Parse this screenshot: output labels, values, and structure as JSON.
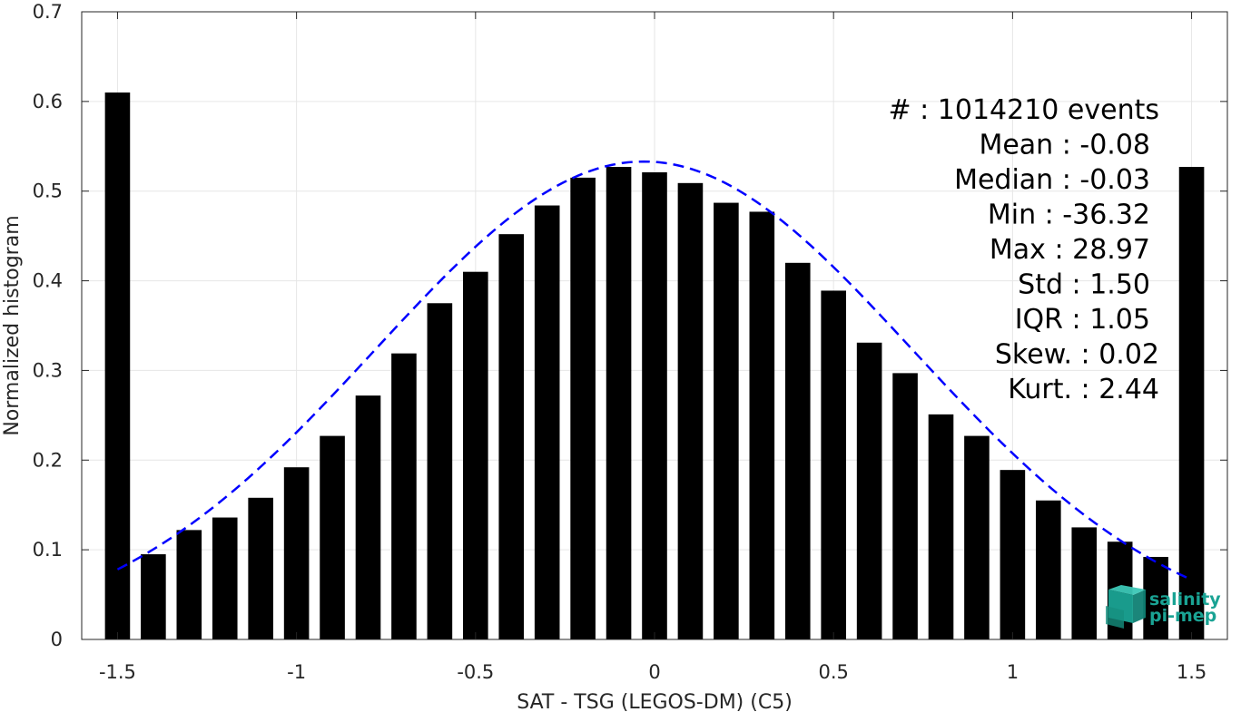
{
  "chart_data": {
    "type": "bar",
    "xlabel": "SAT - TSG (LEGOS-DM) (C5)",
    "ylabel": "Normalized histogram",
    "xlim": [
      -1.6,
      1.6
    ],
    "ylim": [
      0,
      0.7
    ],
    "grid": true,
    "x_ticks": [
      -1.5,
      -1,
      -0.5,
      0,
      0.5,
      1,
      1.5
    ],
    "x_tick_labels": [
      "-1.5",
      "-1",
      "-0.5",
      "0",
      "0.5",
      "1",
      "1.5"
    ],
    "y_ticks": [
      0,
      0.1,
      0.2,
      0.3,
      0.4,
      0.5,
      0.6,
      0.7
    ],
    "y_tick_labels": [
      "0",
      "0.1",
      "0.2",
      "0.3",
      "0.4",
      "0.5",
      "0.6",
      "0.7"
    ],
    "bar_width": 0.07,
    "x": [
      -1.5,
      -1.4,
      -1.3,
      -1.2,
      -1.1,
      -1.0,
      -0.9,
      -0.8,
      -0.7,
      -0.6,
      -0.5,
      -0.4,
      -0.3,
      -0.2,
      -0.1,
      0.0,
      0.1,
      0.2,
      0.3,
      0.4,
      0.5,
      0.6,
      0.7,
      0.8,
      0.9,
      1.0,
      1.1,
      1.2,
      1.3,
      1.4,
      1.5
    ],
    "values": [
      0.61,
      0.095,
      0.122,
      0.136,
      0.158,
      0.192,
      0.227,
      0.272,
      0.319,
      0.375,
      0.41,
      0.452,
      0.484,
      0.515,
      0.527,
      0.521,
      0.509,
      0.487,
      0.477,
      0.42,
      0.389,
      0.331,
      0.297,
      0.251,
      0.227,
      0.189,
      0.155,
      0.125,
      0.109,
      0.092,
      0.527
    ],
    "bar_color": "#000000",
    "fit_curve": {
      "style": "dashed",
      "color": "#0000ff",
      "mean": -0.03,
      "std": 0.75,
      "peak": 0.533,
      "x_range": [
        -1.5,
        1.5
      ]
    },
    "stats": [
      "#  : 1014210 events",
      "Mean : -0.08",
      "Median : -0.03",
      "Min : -36.32",
      "Max : 28.97",
      "Std : 1.50",
      "IQR : 1.05",
      "Skew. : 0.02",
      "Kurt. : 2.44"
    ]
  },
  "logo": {
    "line1": "salinity",
    "line2": "pi-mep",
    "color": "#1aa394"
  }
}
